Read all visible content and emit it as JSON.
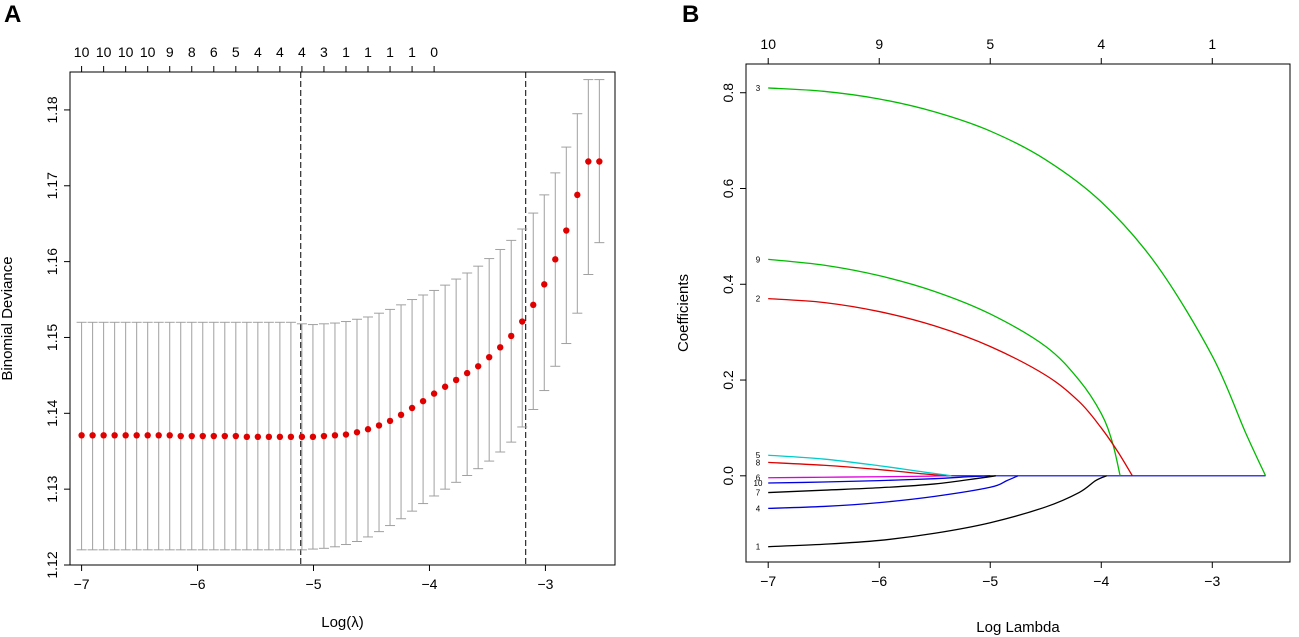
{
  "chart_data": [
    {
      "panel": "A",
      "type": "scatter",
      "subtype": "cross-validation error bars",
      "xlabel": "Log(λ)",
      "ylabel": "Binomial Deviance",
      "xlim": [
        -7.1,
        -2.4
      ],
      "ylim": [
        1.12,
        1.185
      ],
      "x_ticks": [
        -7,
        -6,
        -5,
        -4,
        -3
      ],
      "x_tick_labels": [
        "−7",
        "−6",
        "−5",
        "−4",
        "−3"
      ],
      "y_ticks": [
        1.12,
        1.13,
        1.14,
        1.15,
        1.16,
        1.17,
        1.18
      ],
      "y_tick_labels": [
        "1.12",
        "1.13",
        "1.14",
        "1.15",
        "1.16",
        "1.17",
        "1.18"
      ],
      "top_ticks": [
        -7,
        -6.81,
        -6.62,
        -6.43,
        -6.24,
        -6.05,
        -5.86,
        -5.67,
        -5.48,
        -5.29,
        -5.1,
        -4.91,
        -4.72,
        -4.53,
        -4.34,
        -4.15,
        -3.96
      ],
      "top_labels": [
        "10",
        "10",
        "10",
        "10",
        "9",
        "8",
        "6",
        "5",
        "4",
        "4",
        "4",
        "3",
        "1",
        "1",
        "1",
        "1",
        "0"
      ],
      "vlines": [
        -5.11,
        -3.17
      ],
      "x": [
        -7.0,
        -6.905,
        -6.81,
        -6.715,
        -6.62,
        -6.525,
        -6.43,
        -6.335,
        -6.24,
        -6.145,
        -6.05,
        -5.955,
        -5.86,
        -5.765,
        -5.67,
        -5.575,
        -5.48,
        -5.385,
        -5.29,
        -5.195,
        -5.1,
        -5.005,
        -4.91,
        -4.815,
        -4.72,
        -4.625,
        -4.53,
        -4.435,
        -4.34,
        -4.245,
        -4.15,
        -4.055,
        -3.96,
        -3.865,
        -3.77,
        -3.675,
        -3.58,
        -3.485,
        -3.39,
        -3.295,
        -3.2,
        -3.105,
        -3.01,
        -2.915,
        -2.82,
        -2.725,
        -2.63,
        -2.535
      ],
      "mean": [
        1.1371,
        1.1371,
        1.1371,
        1.1371,
        1.1371,
        1.1371,
        1.1371,
        1.1371,
        1.1371,
        1.137,
        1.137,
        1.137,
        1.137,
        1.137,
        1.137,
        1.1369,
        1.1369,
        1.1369,
        1.1369,
        1.1369,
        1.1369,
        1.1369,
        1.137,
        1.1371,
        1.1372,
        1.1375,
        1.1379,
        1.1384,
        1.139,
        1.1398,
        1.1407,
        1.1416,
        1.1426,
        1.1435,
        1.1444,
        1.1453,
        1.1462,
        1.1474,
        1.1487,
        1.1502,
        1.1521,
        1.1543,
        1.157,
        1.1603,
        1.1641,
        1.1688,
        1.1732,
        1.1732
      ],
      "lower": [
        1.122,
        1.122,
        1.122,
        1.122,
        1.122,
        1.122,
        1.122,
        1.122,
        1.122,
        1.122,
        1.122,
        1.122,
        1.122,
        1.122,
        1.122,
        1.122,
        1.122,
        1.122,
        1.122,
        1.122,
        1.122,
        1.1221,
        1.1222,
        1.1224,
        1.1227,
        1.1231,
        1.1237,
        1.1244,
        1.1252,
        1.1261,
        1.1271,
        1.1281,
        1.1291,
        1.13,
        1.1309,
        1.1318,
        1.1327,
        1.1337,
        1.1349,
        1.1362,
        1.1382,
        1.1405,
        1.143,
        1.1462,
        1.1492,
        1.1532,
        1.1583,
        1.1625
      ],
      "upper": [
        1.152,
        1.152,
        1.152,
        1.152,
        1.152,
        1.152,
        1.152,
        1.152,
        1.152,
        1.152,
        1.152,
        1.152,
        1.152,
        1.152,
        1.152,
        1.152,
        1.152,
        1.152,
        1.152,
        1.152,
        1.1518,
        1.1517,
        1.1518,
        1.1519,
        1.1521,
        1.1524,
        1.1527,
        1.1532,
        1.1537,
        1.1543,
        1.155,
        1.1556,
        1.1562,
        1.1569,
        1.1577,
        1.1585,
        1.1594,
        1.1604,
        1.1616,
        1.1628,
        1.1643,
        1.1664,
        1.1688,
        1.1717,
        1.1751,
        1.1795,
        1.184,
        1.184
      ],
      "point_color": "#e00000",
      "bar_color": "#a0a0a0"
    },
    {
      "panel": "B",
      "type": "line",
      "subtype": "coefficient paths",
      "xlabel": "Log Lambda",
      "ylabel": "Coefficients",
      "xlim": [
        -7.2,
        -2.3
      ],
      "ylim": [
        -0.18,
        0.86
      ],
      "x_ticks": [
        -7,
        -6,
        -5,
        -4,
        -3
      ],
      "x_tick_labels": [
        "−7",
        "−6",
        "−5",
        "−4",
        "−3"
      ],
      "y_ticks": [
        0.0,
        0.2,
        0.4,
        0.6,
        0.8
      ],
      "y_tick_labels": [
        "0.0",
        "0.2",
        "0.4",
        "0.6",
        "0.8"
      ],
      "top_ticks": [
        -7,
        -6,
        -5,
        -4,
        -3
      ],
      "top_labels": [
        "10",
        "9",
        "5",
        "4",
        "1"
      ],
      "series": [
        {
          "name": "3",
          "color": "#00bb00",
          "points": [
            [
              -7,
              0.81
            ],
            [
              -6.5,
              0.803
            ],
            [
              -6,
              0.787
            ],
            [
              -5.5,
              0.76
            ],
            [
              -5,
              0.72
            ],
            [
              -4.5,
              0.66
            ],
            [
              -4,
              0.572
            ],
            [
              -3.5,
              0.44
            ],
            [
              -3,
              0.25
            ],
            [
              -2.7,
              0.09
            ],
            [
              -2.52,
              0.0
            ]
          ]
        },
        {
          "name": "9",
          "color": "#00bb00",
          "points": [
            [
              -7,
              0.452
            ],
            [
              -6.5,
              0.44
            ],
            [
              -6,
              0.418
            ],
            [
              -5.5,
              0.385
            ],
            [
              -5,
              0.338
            ],
            [
              -4.5,
              0.27
            ],
            [
              -4.2,
              0.2
            ],
            [
              -4,
              0.13
            ],
            [
              -3.9,
              0.07
            ],
            [
              -3.83,
              0.0
            ]
          ]
        },
        {
          "name": "2",
          "color": "#dd0000",
          "points": [
            [
              -7,
              0.37
            ],
            [
              -6.5,
              0.362
            ],
            [
              -6,
              0.343
            ],
            [
              -5.5,
              0.313
            ],
            [
              -5,
              0.27
            ],
            [
              -4.5,
              0.21
            ],
            [
              -4.2,
              0.155
            ],
            [
              -4,
              0.1
            ],
            [
              -3.85,
              0.05
            ],
            [
              -3.72,
              0.0
            ]
          ]
        },
        {
          "name": "5",
          "color": "#00cccc",
          "points": [
            [
              -7,
              0.043
            ],
            [
              -6.5,
              0.035
            ],
            [
              -6,
              0.021
            ],
            [
              -5.6,
              0.008
            ],
            [
              -5.35,
              0.0
            ]
          ]
        },
        {
          "name": "8",
          "color": "#dd0000",
          "points": [
            [
              -7,
              0.028
            ],
            [
              -6.5,
              0.022
            ],
            [
              -6,
              0.013
            ],
            [
              -5.6,
              0.004
            ],
            [
              -5.4,
              0.0
            ]
          ]
        },
        {
          "name": "6",
          "color": "#dd00dd",
          "points": [
            [
              -7,
              -0.004
            ],
            [
              -6.5,
              -0.003
            ],
            [
              -6,
              -0.002
            ],
            [
              -5.6,
              -0.001
            ],
            [
              -5.4,
              0.0
            ]
          ]
        },
        {
          "name": "10",
          "color": "#0000dd",
          "points": [
            [
              -7,
              -0.015
            ],
            [
              -6.5,
              -0.013
            ],
            [
              -6,
              -0.01
            ],
            [
              -5.5,
              -0.006
            ],
            [
              -5.2,
              -0.002
            ],
            [
              -5.0,
              0.0
            ]
          ]
        },
        {
          "name": "7",
          "color": "#000000",
          "points": [
            [
              -7,
              -0.035
            ],
            [
              -6.5,
              -0.03
            ],
            [
              -6,
              -0.025
            ],
            [
              -5.5,
              -0.017
            ],
            [
              -5.1,
              -0.005
            ],
            [
              -4.95,
              0.0
            ]
          ]
        },
        {
          "name": "4",
          "color": "#0000dd",
          "points": [
            [
              -7,
              -0.068
            ],
            [
              -6.5,
              -0.064
            ],
            [
              -6,
              -0.056
            ],
            [
              -5.5,
              -0.043
            ],
            [
              -5,
              -0.024
            ],
            [
              -4.85,
              -0.01
            ],
            [
              -4.75,
              0.0
            ]
          ]
        },
        {
          "name": "1",
          "color": "#000000",
          "points": [
            [
              -7,
              -0.148
            ],
            [
              -6.5,
              -0.143
            ],
            [
              -6,
              -0.135
            ],
            [
              -5.5,
              -0.12
            ],
            [
              -5,
              -0.098
            ],
            [
              -4.5,
              -0.065
            ],
            [
              -4.2,
              -0.035
            ],
            [
              -4.05,
              -0.01
            ],
            [
              -3.95,
              0.0
            ]
          ]
        }
      ],
      "baseline": {
        "from": -5.4,
        "to": -2.52,
        "color": "#0000dd"
      }
    }
  ],
  "panels": {
    "a_letter": "A",
    "b_letter": "B"
  }
}
